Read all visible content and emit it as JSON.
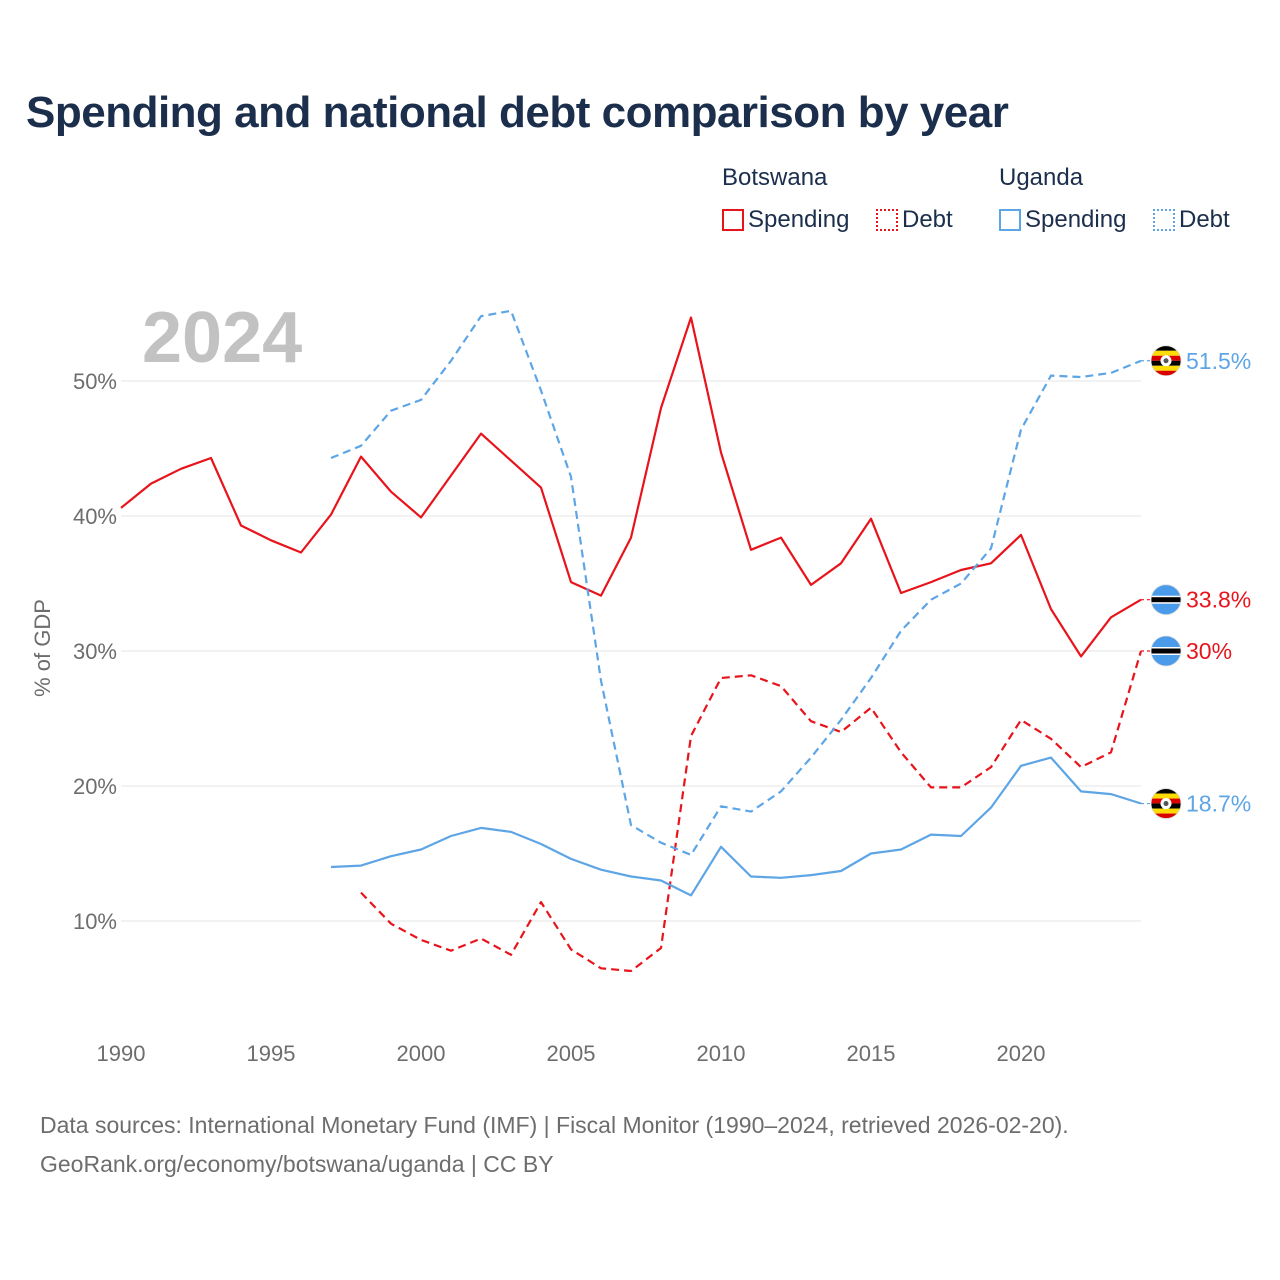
{
  "title": "Spending and national debt comparison by year",
  "legend": {
    "groups": [
      {
        "country": "Botswana",
        "items": [
          {
            "label": "Spending",
            "color": "#e8141c",
            "style": "solid"
          },
          {
            "label": "Debt",
            "color": "#e8141c",
            "style": "dotted"
          }
        ]
      },
      {
        "country": "Uganda",
        "items": [
          {
            "label": "Spending",
            "color": "#5ea5e6",
            "style": "solid"
          },
          {
            "label": "Debt",
            "color": "#5ea5e6",
            "style": "dotted"
          }
        ]
      }
    ]
  },
  "footer": {
    "source": "Data sources: International Monetary Fund (IMF) | Fiscal Monitor (1990–2024, retrieved 2026-02-20).",
    "credit": "GeoRank.org/economy/botswana/uganda | CC BY"
  },
  "chart_data": {
    "type": "line",
    "title": "Spending and national debt comparison by year",
    "watermark_year": "2024",
    "xlabel": "",
    "ylabel": "% of GDP",
    "xlim": [
      1990,
      2024
    ],
    "ylim": [
      2,
      57
    ],
    "x_ticks": [
      1990,
      1995,
      2000,
      2005,
      2010,
      2015,
      2020
    ],
    "y_ticks": [
      10,
      20,
      30,
      40,
      50
    ],
    "y_tick_labels": [
      "10%",
      "20%",
      "30%",
      "40%",
      "50%"
    ],
    "grid": "horizontal",
    "series": [
      {
        "name": "Botswana Spending",
        "country": "Botswana",
        "color": "#e8141c",
        "dashed": false,
        "flag": "botswana",
        "end_label": "33.8%",
        "x": [
          1990,
          1991,
          1992,
          1993,
          1994,
          1995,
          1996,
          1997,
          1998,
          1999,
          2000,
          2001,
          2002,
          2003,
          2004,
          2005,
          2006,
          2007,
          2008,
          2009,
          2010,
          2011,
          2012,
          2013,
          2014,
          2015,
          2016,
          2017,
          2018,
          2019,
          2020,
          2021,
          2022,
          2023,
          2024
        ],
        "y": [
          40.6,
          42.4,
          43.5,
          44.3,
          39.3,
          38.2,
          37.3,
          40.1,
          44.4,
          41.8,
          39.9,
          43.0,
          46.1,
          44.1,
          42.1,
          35.1,
          34.1,
          38.4,
          48.0,
          54.7,
          44.7,
          37.5,
          38.4,
          34.9,
          36.5,
          39.8,
          34.3,
          35.1,
          36.0,
          36.5,
          38.6,
          33.1,
          29.6,
          32.5,
          33.8
        ]
      },
      {
        "name": "Botswana Debt",
        "country": "Botswana",
        "color": "#e8141c",
        "dashed": true,
        "flag": "botswana",
        "end_label": "30%",
        "x": [
          1998,
          1999,
          2000,
          2001,
          2002,
          2003,
          2004,
          2005,
          2006,
          2007,
          2008,
          2009,
          2010,
          2011,
          2012,
          2013,
          2014,
          2015,
          2016,
          2017,
          2018,
          2019,
          2020,
          2021,
          2022,
          2023,
          2024
        ],
        "y": [
          12.1,
          9.8,
          8.6,
          7.8,
          8.7,
          7.5,
          11.4,
          7.9,
          6.5,
          6.3,
          8.0,
          23.7,
          28.0,
          28.2,
          27.4,
          24.8,
          24.0,
          25.8,
          22.5,
          19.9,
          19.9,
          21.4,
          24.9,
          23.5,
          21.4,
          22.5,
          30.0
        ]
      },
      {
        "name": "Uganda Spending",
        "country": "Uganda",
        "color": "#5ea5e6",
        "dashed": false,
        "flag": "uganda",
        "end_label": "18.7%",
        "x": [
          1997,
          1998,
          1999,
          2000,
          2001,
          2002,
          2003,
          2004,
          2005,
          2006,
          2007,
          2008,
          2009,
          2010,
          2011,
          2012,
          2013,
          2014,
          2015,
          2016,
          2017,
          2018,
          2019,
          2020,
          2021,
          2022,
          2023,
          2024
        ],
        "y": [
          14.0,
          14.1,
          14.8,
          15.3,
          16.3,
          16.9,
          16.6,
          15.7,
          14.6,
          13.8,
          13.3,
          13.0,
          11.9,
          15.5,
          13.3,
          13.2,
          13.4,
          13.7,
          15.0,
          15.3,
          16.4,
          16.3,
          18.4,
          21.5,
          22.1,
          19.6,
          19.4,
          18.7
        ]
      },
      {
        "name": "Uganda Debt",
        "country": "Uganda",
        "color": "#5ea5e6",
        "dashed": true,
        "flag": "uganda",
        "end_label": "51.5%",
        "x": [
          1997,
          1998,
          1999,
          2000,
          2001,
          2002,
          2003,
          2004,
          2005,
          2006,
          2007,
          2008,
          2009,
          2010,
          2011,
          2012,
          2013,
          2014,
          2015,
          2016,
          2017,
          2018,
          2019,
          2020,
          2021,
          2022,
          2023,
          2024
        ],
        "y": [
          44.3,
          45.2,
          47.8,
          48.6,
          51.5,
          54.8,
          55.2,
          49.3,
          42.9,
          27.8,
          17.1,
          15.8,
          14.9,
          18.5,
          18.1,
          19.6,
          22.1,
          24.9,
          28.0,
          31.5,
          33.8,
          35.0,
          37.6,
          46.4,
          50.4,
          50.3,
          50.6,
          51.5
        ]
      }
    ]
  }
}
